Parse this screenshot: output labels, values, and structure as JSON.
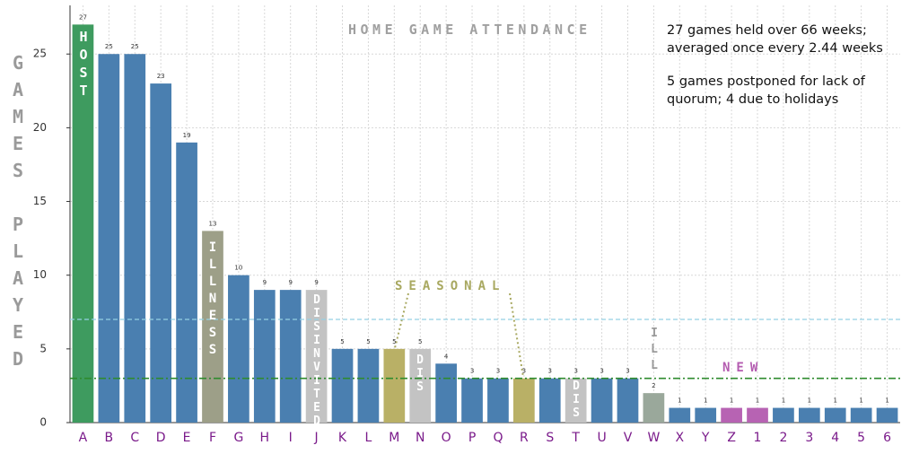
{
  "chart_data": {
    "type": "bar",
    "title": "HOME GAME ATTENDANCE",
    "y_label": "GAMES PLAYED",
    "categories": [
      "A",
      "B",
      "C",
      "D",
      "E",
      "F",
      "G",
      "H",
      "I",
      "J",
      "K",
      "L",
      "M",
      "N",
      "O",
      "P",
      "Q",
      "R",
      "S",
      "T",
      "U",
      "V",
      "W",
      "X",
      "Y",
      "Z",
      "1",
      "2",
      "3",
      "4",
      "5",
      "6"
    ],
    "values": [
      27,
      25,
      25,
      23,
      19,
      13,
      10,
      9,
      9,
      9,
      5,
      5,
      5,
      5,
      4,
      3,
      3,
      3,
      3,
      3,
      3,
      3,
      2,
      1,
      1,
      1,
      1,
      1,
      1,
      1,
      1,
      1
    ],
    "colors": [
      "#3e9b5f",
      "#4a7fb0",
      "#4a7fb0",
      "#4a7fb0",
      "#4a7fb0",
      "#9d9f88",
      "#4a7fb0",
      "#4a7fb0",
      "#4a7fb0",
      "#c3c3c3",
      "#4a7fb0",
      "#4a7fb0",
      "#b9b066",
      "#c3c3c3",
      "#4a7fb0",
      "#4a7fb0",
      "#4a7fb0",
      "#b9b066",
      "#4a7fb0",
      "#c3c3c3",
      "#4a7fb0",
      "#4a7fb0",
      "#9aa89b",
      "#4a7fb0",
      "#4a7fb0",
      "#b763b3",
      "#b763b3",
      "#4a7fb0",
      "#4a7fb0",
      "#4a7fb0",
      "#4a7fb0",
      "#4a7fb0"
    ],
    "ylim": [
      0,
      28.3
    ],
    "yticks": [
      0,
      5,
      10,
      15,
      20,
      25
    ],
    "grid": true,
    "reference_lines": [
      {
        "value": 7,
        "color": "#95d0e3",
        "style": "dashed"
      },
      {
        "value": 3,
        "color": "#2e8b2e",
        "style": "dashdot"
      }
    ],
    "annotations": [
      "HOST",
      "ILLNESS",
      "DISINVITED",
      "DIS",
      "DIS",
      "ILL",
      "SEASONAL",
      "NEW"
    ],
    "notes": [
      "27 games held over 66 weeks;",
      "averaged once every 2.44 weeks",
      "5 games postponed for lack of",
      "quorum; 4 due to holidays"
    ]
  }
}
